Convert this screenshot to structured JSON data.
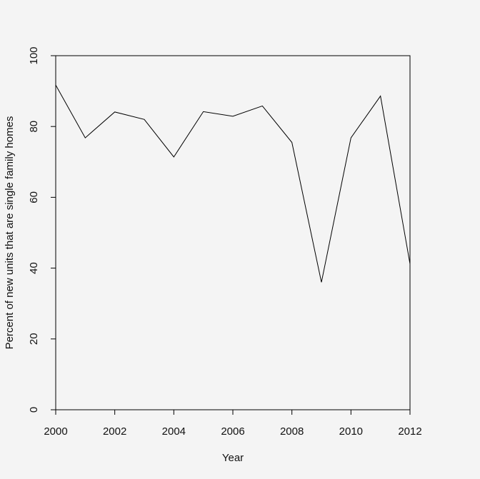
{
  "chart_data": {
    "type": "line",
    "title": "",
    "xlabel": "Year",
    "ylabel": "Percent of new units that are single family homes",
    "xlim": [
      2000,
      2012
    ],
    "ylim": [
      0,
      100
    ],
    "x_ticks": [
      2000,
      2002,
      2004,
      2006,
      2008,
      2010,
      2012
    ],
    "y_ticks": [
      0,
      20,
      40,
      60,
      80,
      100
    ],
    "grid": false,
    "legend": "none",
    "colors": {
      "line": "#000000",
      "background": "#f4f4f4",
      "axis": "#000000"
    },
    "series": [
      {
        "x": [
          2000,
          2001,
          2002,
          2003,
          2004,
          2005,
          2006,
          2007,
          2008,
          2009,
          2010,
          2011,
          2012
        ],
        "values": [
          91.7,
          76.8,
          84.1,
          82.0,
          71.4,
          84.2,
          82.9,
          85.8,
          75.5,
          36.0,
          76.8,
          88.6,
          41.2
        ]
      }
    ]
  }
}
